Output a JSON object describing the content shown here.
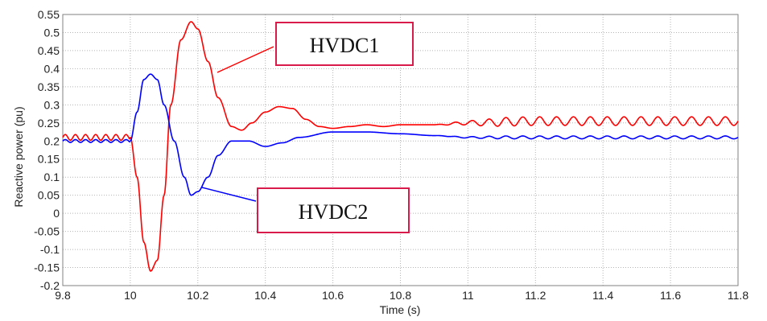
{
  "chart_data": {
    "type": "line",
    "title": "",
    "xlabel": "Time (s)",
    "ylabel": "Reactive power (pu)",
    "xlim": [
      9.8,
      11.8
    ],
    "ylim": [
      -0.2,
      0.55
    ],
    "grid": true,
    "x_ticks": [
      "9.8",
      "10",
      "10.2",
      "10.4",
      "10.6",
      "10.8",
      "11",
      "11.2",
      "11.4",
      "11.6",
      "11.8"
    ],
    "y_ticks": [
      "-0.2",
      "-0.15",
      "-0.1",
      "-0.05",
      "0",
      "0.05",
      "0.1",
      "0.15",
      "0.2",
      "0.25",
      "0.3",
      "0.35",
      "0.4",
      "0.45",
      "0.5",
      "0.55"
    ],
    "series": [
      {
        "name": "HVDC1",
        "color": "#ff0000",
        "points": [
          [
            9.8,
            0.21
          ],
          [
            10.0,
            0.21
          ],
          [
            10.02,
            0.1
          ],
          [
            10.04,
            -0.08
          ],
          [
            10.06,
            -0.16
          ],
          [
            10.08,
            -0.13
          ],
          [
            10.1,
            0.05
          ],
          [
            10.12,
            0.3
          ],
          [
            10.15,
            0.48
          ],
          [
            10.18,
            0.53
          ],
          [
            10.2,
            0.51
          ],
          [
            10.23,
            0.42
          ],
          [
            10.26,
            0.32
          ],
          [
            10.3,
            0.24
          ],
          [
            10.33,
            0.23
          ],
          [
            10.36,
            0.25
          ],
          [
            10.4,
            0.28
          ],
          [
            10.44,
            0.295
          ],
          [
            10.48,
            0.29
          ],
          [
            10.52,
            0.26
          ],
          [
            10.56,
            0.24
          ],
          [
            10.6,
            0.235
          ],
          [
            10.65,
            0.24
          ],
          [
            10.7,
            0.245
          ],
          [
            10.75,
            0.24
          ],
          [
            10.8,
            0.245
          ],
          [
            10.9,
            0.245
          ],
          [
            11.0,
            0.25
          ],
          [
            11.2,
            0.255
          ],
          [
            11.4,
            0.255
          ],
          [
            11.6,
            0.255
          ],
          [
            11.8,
            0.255
          ]
        ],
        "oscillation_amplitude_after_10.9": 0.012
      },
      {
        "name": "HVDC2",
        "color": "#0000ff",
        "points": [
          [
            9.8,
            0.2
          ],
          [
            10.0,
            0.2
          ],
          [
            10.02,
            0.28
          ],
          [
            10.04,
            0.37
          ],
          [
            10.06,
            0.385
          ],
          [
            10.08,
            0.37
          ],
          [
            10.1,
            0.3
          ],
          [
            10.13,
            0.2
          ],
          [
            10.16,
            0.1
          ],
          [
            10.18,
            0.05
          ],
          [
            10.2,
            0.06
          ],
          [
            10.23,
            0.1
          ],
          [
            10.26,
            0.16
          ],
          [
            10.3,
            0.2
          ],
          [
            10.35,
            0.2
          ],
          [
            10.4,
            0.185
          ],
          [
            10.45,
            0.195
          ],
          [
            10.5,
            0.21
          ],
          [
            10.6,
            0.225
          ],
          [
            10.7,
            0.225
          ],
          [
            10.8,
            0.22
          ],
          [
            10.9,
            0.215
          ],
          [
            11.0,
            0.21
          ],
          [
            11.2,
            0.21
          ],
          [
            11.4,
            0.21
          ],
          [
            11.6,
            0.21
          ],
          [
            11.8,
            0.21
          ]
        ],
        "oscillation_amplitude_after_10.9": 0.004
      }
    ],
    "annotations": [
      {
        "label": "HVDC1",
        "target_series": "HVDC1",
        "border_color": "#d81b4a"
      },
      {
        "label": "HVDC2",
        "target_series": "HVDC2",
        "border_color": "#d81b4a"
      }
    ]
  }
}
